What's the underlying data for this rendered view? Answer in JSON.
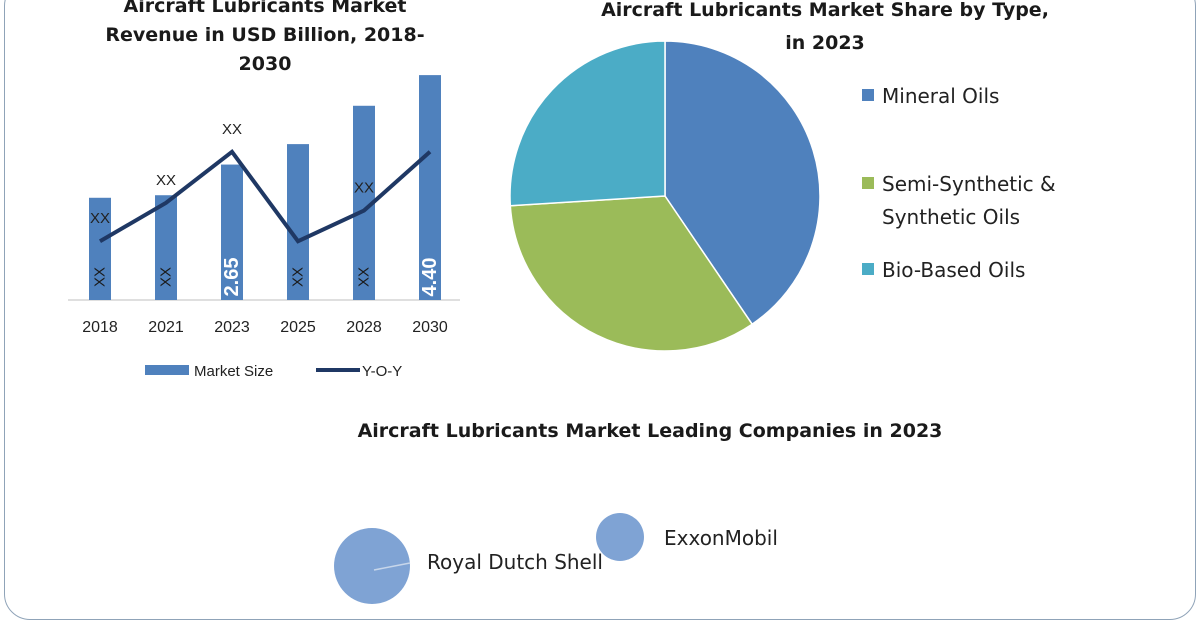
{
  "colors": {
    "bar": "#4f81bd",
    "line": "#1f3864",
    "mineral": "#4f81bd",
    "synthetic": "#9bbb59",
    "bio": "#4bacc6",
    "bubble": "#7fa3d4"
  },
  "chart_data": [
    {
      "type": "bar",
      "title": "Aircraft Lubricants Market Revenue in USD Billion, 2018-2030",
      "title_lines": [
        "Aircraft Lubricants Market",
        "Revenue in USD Billion, 2018-",
        "2030"
      ],
      "categories": [
        "2018",
        "2021",
        "2023",
        "2025",
        "2028",
        "2030"
      ],
      "series": [
        {
          "name": "Market Size",
          "type": "bar",
          "values": [
            2.0,
            2.05,
            2.65,
            3.05,
            3.8,
            4.4
          ],
          "data_labels": [
            "XX",
            "XX",
            "2.65",
            "XX",
            "XX",
            "4.40"
          ]
        },
        {
          "name": "Y-O-Y",
          "type": "line",
          "values": [
            1.15,
            1.9,
            2.9,
            1.15,
            1.75,
            2.9
          ],
          "data_labels": [
            "XX",
            "XX",
            "XX",
            "",
            "XX",
            ""
          ]
        }
      ],
      "ylim": [
        0,
        4.5
      ],
      "legend": "bottom",
      "grid": false
    },
    {
      "type": "pie",
      "title": "Aircraft Lubricants Market Share by Type, in 2023",
      "title_lines": [
        "Aircraft Lubricants Market Share by Type,",
        "in 2023"
      ],
      "labels": [
        "Mineral Oils",
        "Semi-Synthetic & Synthetic Oils",
        "Bio-Based Oils"
      ],
      "legend_lines": [
        [
          "Mineral Oils"
        ],
        [
          "Semi-Synthetic &",
          "Synthetic Oils"
        ],
        [
          "Bio-Based Oils"
        ]
      ],
      "values": [
        40.5,
        33.5,
        26
      ],
      "legend": "right"
    },
    {
      "type": "scatter",
      "title": "Aircraft Lubricants Market Leading Companies in 2023",
      "points": [
        {
          "label": "Royal Dutch Shell",
          "size": 38
        },
        {
          "label": "ExxonMobil",
          "size": 24
        }
      ]
    }
  ]
}
